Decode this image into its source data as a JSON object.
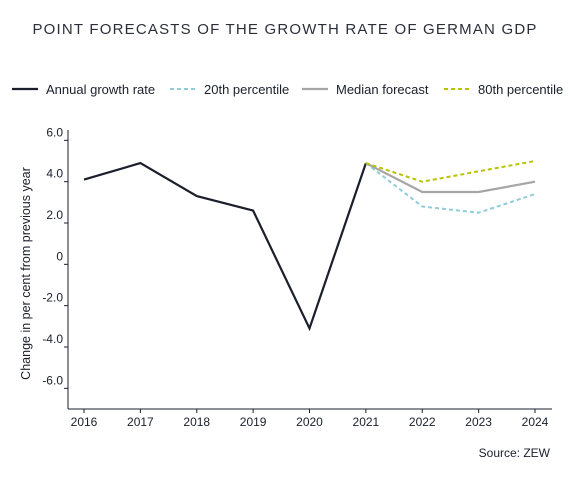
{
  "title": "POINT FORECASTS OF THE GROWTH RATE OF GERMAN GDP",
  "source": "Source:  ZEW",
  "colors": {
    "actual": "#1a1f2b",
    "p20": "#8fcdd9",
    "median": "#a6a6a6",
    "p80": "#b8c400",
    "axis": "#1a1f2b"
  },
  "chart_data": {
    "type": "line",
    "ylabel": "Change in per cent from previous year",
    "xlabel": "",
    "x": [
      "2016",
      "2017",
      "2018",
      "2019",
      "2020",
      "2021",
      "2022",
      "2023",
      "2024"
    ],
    "ylim": [
      -7,
      6.5
    ],
    "yticks": [
      "6.0",
      "4.0",
      "2.0",
      "0",
      "-2.0",
      "-4.0",
      "-6.0"
    ],
    "ytick_values": [
      6,
      4,
      2,
      0,
      -2,
      -4,
      -6
    ],
    "grid": false,
    "legend_position": "top",
    "series": [
      {
        "name": "Annual growth rate",
        "style": "solid",
        "color_key": "actual",
        "x": [
          "2016",
          "2017",
          "2018",
          "2019",
          "2020",
          "2021"
        ],
        "values": [
          4.1,
          4.9,
          3.3,
          2.6,
          -3.1,
          4.9
        ]
      },
      {
        "name": "20th percentile",
        "style": "dashed",
        "color_key": "p20",
        "x": [
          "2021",
          "2022",
          "2023",
          "2024"
        ],
        "values": [
          4.9,
          2.8,
          2.5,
          3.4
        ]
      },
      {
        "name": "Median forecast",
        "style": "solid",
        "color_key": "median",
        "x": [
          "2021",
          "2022",
          "2023",
          "2024"
        ],
        "values": [
          4.9,
          3.5,
          3.5,
          4.0
        ]
      },
      {
        "name": "80th percentile",
        "style": "dashed",
        "color_key": "p80",
        "x": [
          "2021",
          "2022",
          "2023",
          "2024"
        ],
        "values": [
          4.9,
          4.0,
          4.5,
          5.0
        ]
      }
    ]
  }
}
